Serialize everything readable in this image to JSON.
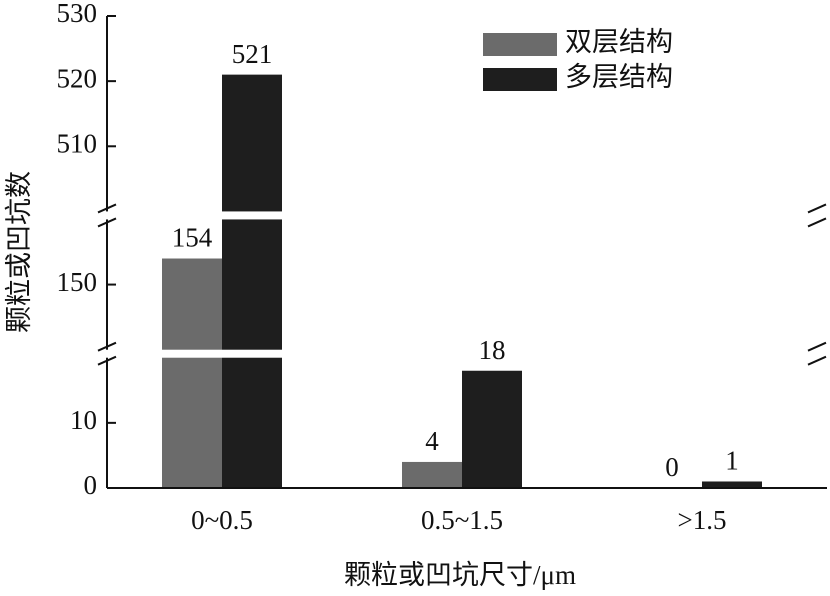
{
  "chart_data": {
    "type": "bar",
    "x_label": "颗粒或凹坑尺寸/μm",
    "y_label": "颗粒或凹坑数",
    "categories": [
      "0~0.5",
      "0.5~1.5",
      ">1.5"
    ],
    "series": [
      {
        "name": "双层结构",
        "color": "#6b6b6b",
        "values": [
          154,
          4,
          0
        ]
      },
      {
        "name": "多层结构",
        "color": "#1e1e1e",
        "values": [
          521,
          18,
          1
        ]
      }
    ],
    "y_segments": [
      {
        "ylim": [
          0,
          20
        ],
        "yticks": [
          0,
          10
        ]
      },
      {
        "ylim": [
          140,
          160
        ],
        "yticks": [
          150
        ]
      },
      {
        "ylim": [
          500,
          530
        ],
        "yticks": [
          510,
          520,
          530
        ]
      }
    ],
    "legend": "upper right"
  }
}
